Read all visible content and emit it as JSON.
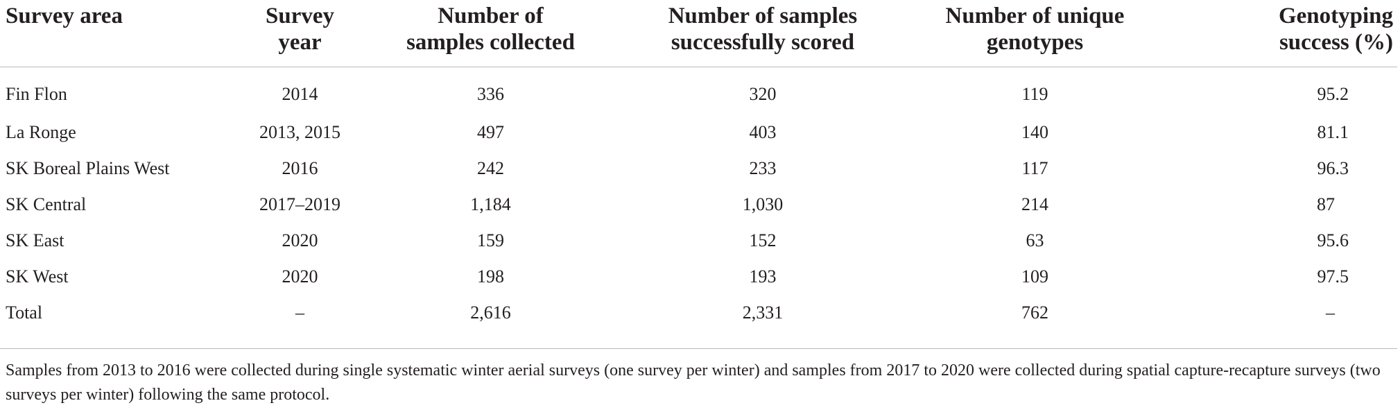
{
  "table": {
    "headers": [
      "Survey area",
      "Survey year",
      "Number of samples collected",
      "Number of samples successfully scored",
      "Number of unique genotypes",
      "Genotyping success (%)"
    ],
    "header_lines": [
      [
        "Survey area"
      ],
      [
        "Survey",
        "year"
      ],
      [
        "Number of",
        "samples collected"
      ],
      [
        "Number of samples",
        "successfully scored"
      ],
      [
        "Number of unique",
        "genotypes"
      ],
      [
        "Genotyping",
        "success (%)"
      ]
    ],
    "rows": [
      [
        "Fin Flon",
        "2014",
        "336",
        "320",
        "119",
        "95.2"
      ],
      [
        "La Ronge",
        "2013, 2015",
        "497",
        "403",
        "140",
        "81.1"
      ],
      [
        "SK Boreal Plains West",
        "2016",
        "242",
        "233",
        "117",
        "96.3"
      ],
      [
        "SK Central",
        "2017–2019",
        "1,184",
        "1,030",
        "214",
        "87"
      ],
      [
        "SK East",
        "2020",
        "159",
        "152",
        "63",
        "95.6"
      ],
      [
        "SK West",
        "2020",
        "198",
        "193",
        "109",
        "97.5"
      ],
      [
        "Total",
        "–",
        "2,616",
        "2,331",
        "762",
        "–"
      ]
    ]
  },
  "footnote": "Samples from 2013 to 2016 were collected during single systematic winter aerial surveys (one survey per winter) and samples from 2017 to 2020 were collected during spatial capture-recapture surveys (two surveys per winter) following the same protocol."
}
